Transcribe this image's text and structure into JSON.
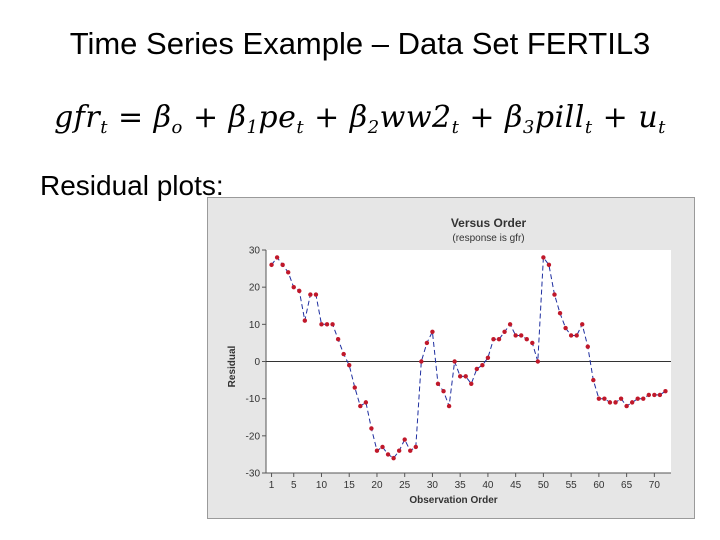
{
  "slide": {
    "title": "Time Series Example – Data Set FERTIL3",
    "equation": {
      "lhs": "gfr",
      "lhs_sub": "t",
      "terms": [
        {
          "coef": "β",
          "coef_sub": "o",
          "var": "",
          "var_sub": ""
        },
        {
          "coef": "β",
          "coef_sub": "1",
          "var": "pe",
          "var_sub": "t"
        },
        {
          "coef": "β",
          "coef_sub": "2",
          "var": "ww2",
          "var_sub": "t"
        },
        {
          "coef": "β",
          "coef_sub": "3",
          "var": "pill",
          "var_sub": "t"
        },
        {
          "coef": "",
          "coef_sub": "",
          "var": "u",
          "var_sub": "t"
        }
      ]
    },
    "subtitle": "Residual plots:"
  },
  "chart_data": {
    "type": "line",
    "title": "Versus Order",
    "subtitle": "(response is gfr)",
    "xlabel": "Observation Order",
    "ylabel": "Residual",
    "xlim": [
      0,
      73
    ],
    "ylim": [
      -30,
      30
    ],
    "x_ticks": [
      1,
      5,
      10,
      15,
      20,
      25,
      30,
      35,
      40,
      45,
      50,
      55,
      60,
      65,
      70
    ],
    "x_tick_labels": [
      "1",
      "5",
      "10",
      "15",
      "20",
      "25",
      "30",
      "35",
      "40",
      "45",
      "50",
      "55",
      "60",
      "65",
      "70"
    ],
    "y_ticks": [
      30,
      20,
      10,
      0,
      -10,
      -20,
      -30
    ],
    "y_tick_labels": [
      "30",
      "20",
      "10",
      "0",
      "-10",
      "-20",
      "-30"
    ],
    "reference_line_y": 0,
    "grid": false,
    "colors": {
      "line": "#1f2fa0",
      "marker": "#c0182a",
      "plot_bg": "#ffffff",
      "frame_bg": "#e6e6e6",
      "title": "#333333"
    },
    "x": [
      1,
      2,
      3,
      4,
      5,
      6,
      7,
      8,
      9,
      10,
      11,
      12,
      13,
      14,
      15,
      16,
      17,
      18,
      19,
      20,
      21,
      22,
      23,
      24,
      25,
      26,
      27,
      28,
      29,
      30,
      31,
      32,
      33,
      34,
      35,
      36,
      37,
      38,
      39,
      40,
      41,
      42,
      43,
      44,
      45,
      46,
      47,
      48,
      49,
      50,
      51,
      52,
      53,
      54,
      55,
      56,
      57,
      58,
      59,
      60,
      61,
      62,
      63,
      64,
      65,
      66,
      67,
      68,
      69,
      70,
      71,
      72
    ],
    "y": [
      26,
      28,
      26,
      24,
      20,
      19,
      11,
      18,
      18,
      10,
      10,
      10,
      6,
      2,
      -1,
      -7,
      -12,
      -11,
      -18,
      -24,
      -23,
      -25,
      -26,
      -24,
      -21,
      -24,
      -23,
      0,
      5,
      8,
      -6,
      -8,
      -12,
      0,
      -4,
      -4,
      -6,
      -2,
      -1,
      1,
      6,
      6,
      8,
      10,
      7,
      7,
      6,
      5,
      0,
      28,
      26,
      18,
      13,
      9,
      7,
      7,
      10,
      4,
      -5,
      -10,
      -10,
      -11,
      -11,
      -10,
      -12,
      -11,
      -10,
      -10,
      -9,
      -9,
      -9,
      -8
    ]
  }
}
